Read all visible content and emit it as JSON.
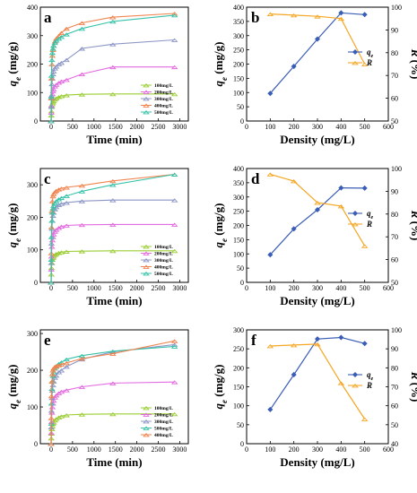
{
  "chart_data": [
    {
      "panel": "a",
      "type": "line",
      "xlabel": "Time (min)",
      "ylabel": "q_e (mg/g)",
      "xlim": [
        -250,
        3200
      ],
      "ylim": [
        0,
        400
      ],
      "xticks": [
        "0",
        "500",
        "1000",
        "1500",
        "2000",
        "2500",
        "3000"
      ],
      "yticks": [
        "0",
        "100",
        "200",
        "300",
        "400"
      ],
      "x": [
        0,
        5,
        10,
        20,
        30,
        45,
        60,
        90,
        120,
        180,
        240,
        360,
        720,
        1440,
        2880
      ],
      "series": [
        {
          "name": "100mg/L",
          "color": "#9ACD32",
          "values": [
            0,
            20,
            35,
            52,
            60,
            66,
            70,
            76,
            80,
            85,
            88,
            91,
            94,
            95,
            95
          ]
        },
        {
          "name": "200mg/L",
          "color": "#E36BE0",
          "values": [
            0,
            30,
            55,
            80,
            95,
            105,
            112,
            122,
            128,
            135,
            140,
            145,
            165,
            190,
            190
          ]
        },
        {
          "name": "300mg/L",
          "color": "#8C96C6",
          "values": [
            0,
            50,
            90,
            130,
            150,
            165,
            175,
            185,
            192,
            200,
            205,
            215,
            255,
            270,
            285
          ]
        },
        {
          "name": "400mg/L",
          "color": "#F0834E",
          "values": [
            0,
            80,
            150,
            200,
            230,
            250,
            265,
            280,
            290,
            300,
            310,
            325,
            345,
            365,
            378
          ]
        },
        {
          "name": "500mg/L",
          "color": "#36C2A8",
          "values": [
            0,
            85,
            160,
            215,
            240,
            255,
            265,
            275,
            283,
            290,
            296,
            305,
            325,
            350,
            372
          ]
        }
      ]
    },
    {
      "panel": "b",
      "type": "line",
      "dual_axis": true,
      "xlabel": "Density (mg/L)",
      "ylabel": "q_e (mg/g)",
      "ylabel_right": "R (%)",
      "xlim": [
        0,
        600
      ],
      "ylim": [
        0,
        400
      ],
      "ylim_right": [
        50,
        100
      ],
      "xticks": [
        "0",
        "100",
        "200",
        "300",
        "400",
        "500",
        "600"
      ],
      "yticks": [
        "0",
        "50",
        "100",
        "150",
        "200",
        "250",
        "300",
        "350",
        "400"
      ],
      "yticks_right": [
        "50",
        "60",
        "70",
        "80",
        "90",
        "100"
      ],
      "x": [
        100,
        200,
        300,
        400,
        500
      ],
      "series": [
        {
          "name": "q_e",
          "axis": "left",
          "color": "#3A5DB5",
          "values": [
            97,
            192,
            288,
            380,
            374
          ]
        },
        {
          "name": "R",
          "axis": "right",
          "color": "#F5A623",
          "values": [
            97,
            96.5,
            96,
            95,
            75
          ]
        }
      ]
    },
    {
      "panel": "c",
      "type": "line",
      "xlabel": "Time (min)",
      "ylabel": "q_e (mg/g)",
      "xlim": [
        -250,
        3200
      ],
      "ylim": [
        0,
        350
      ],
      "xticks": [
        "0",
        "500",
        "1000",
        "1500",
        "2000",
        "2500",
        "3000"
      ],
      "yticks": [
        "0",
        "100",
        "200",
        "300"
      ],
      "x": [
        0,
        5,
        10,
        20,
        30,
        45,
        60,
        90,
        120,
        180,
        240,
        360,
        720,
        1440,
        2880
      ],
      "series": [
        {
          "name": "100mg/L",
          "color": "#9ACD32",
          "values": [
            0,
            25,
            45,
            60,
            70,
            76,
            80,
            85,
            88,
            91,
            93,
            95,
            96,
            97,
            97
          ]
        },
        {
          "name": "200mg/L",
          "color": "#E36BE0",
          "values": [
            0,
            40,
            80,
            110,
            130,
            140,
            148,
            156,
            162,
            168,
            172,
            175,
            177,
            178,
            178
          ]
        },
        {
          "name": "300mg/L",
          "color": "#8C96C6",
          "values": [
            0,
            60,
            120,
            165,
            190,
            205,
            215,
            225,
            232,
            238,
            242,
            245,
            250,
            253,
            253
          ]
        },
        {
          "name": "400mg/L",
          "color": "#F0834E",
          "values": [
            0,
            90,
            170,
            220,
            250,
            265,
            272,
            278,
            282,
            286,
            289,
            292,
            298,
            312,
            332
          ]
        },
        {
          "name": "500mg/L",
          "color": "#36C2A8",
          "values": [
            0,
            70,
            140,
            190,
            215,
            228,
            236,
            244,
            250,
            256,
            260,
            266,
            280,
            300,
            332
          ]
        }
      ]
    },
    {
      "panel": "d",
      "type": "line",
      "dual_axis": true,
      "xlabel": "Density (mg/L)",
      "ylabel": "q_e (mg/g)",
      "ylabel_right": "R (%)",
      "xlim": [
        0,
        600
      ],
      "ylim": [
        0,
        400
      ],
      "ylim_right": [
        50,
        100
      ],
      "xticks": [
        "0",
        "100",
        "200",
        "300",
        "400",
        "500",
        "600"
      ],
      "yticks": [
        "0",
        "50",
        "100",
        "150",
        "200",
        "250",
        "300",
        "350",
        "400"
      ],
      "yticks_right": [
        "50",
        "60",
        "70",
        "80",
        "90",
        "100"
      ],
      "x": [
        100,
        200,
        300,
        400,
        500
      ],
      "series": [
        {
          "name": "q_e",
          "axis": "left",
          "color": "#3A5DB5",
          "values": [
            97,
            188,
            255,
            332,
            331
          ]
        },
        {
          "name": "R",
          "axis": "right",
          "color": "#F5A623",
          "values": [
            97.5,
            94.5,
            85,
            83.5,
            66
          ]
        }
      ]
    },
    {
      "panel": "e",
      "type": "line",
      "xlabel": "Time (min)",
      "ylabel": "q_e (mg/g)",
      "xlim": [
        -250,
        3200
      ],
      "ylim": [
        0,
        310
      ],
      "xticks": [
        "0",
        "500",
        "1000",
        "1500",
        "2000",
        "2500",
        "3000"
      ],
      "yticks": [
        "0",
        "100",
        "200",
        "300"
      ],
      "x": [
        0,
        5,
        10,
        20,
        30,
        45,
        60,
        90,
        120,
        180,
        240,
        360,
        720,
        1440,
        2880
      ],
      "series": [
        {
          "name": "100mg/L",
          "color": "#9ACD32",
          "values": [
            0,
            15,
            28,
            40,
            48,
            54,
            58,
            64,
            68,
            72,
            75,
            78,
            80,
            81,
            81
          ]
        },
        {
          "name": "200mg/L",
          "color": "#E36BE0",
          "values": [
            0,
            30,
            60,
            85,
            100,
            110,
            118,
            126,
            132,
            138,
            142,
            146,
            155,
            165,
            168
          ]
        },
        {
          "name": "300mg/L",
          "color": "#8C96C6",
          "values": [
            0,
            45,
            90,
            125,
            145,
            160,
            170,
            180,
            186,
            195,
            200,
            210,
            230,
            250,
            270
          ]
        },
        {
          "name": "500mg/L",
          "color": "#36C2A8",
          "values": [
            0,
            55,
            110,
            150,
            170,
            185,
            195,
            205,
            210,
            218,
            222,
            230,
            240,
            252,
            265
          ]
        },
        {
          "name": "400mg/L",
          "color": "#F0834E",
          "values": [
            0,
            70,
            130,
            170,
            190,
            200,
            205,
            210,
            212,
            214,
            216,
            220,
            232,
            245,
            280
          ]
        }
      ]
    },
    {
      "panel": "f",
      "type": "line",
      "dual_axis": true,
      "xlabel": "Density (mg/L)",
      "ylabel": "q_e (mg/g)",
      "ylabel_right": "R (%)",
      "xlim": [
        0,
        600
      ],
      "ylim": [
        0,
        300
      ],
      "ylim_right": [
        40,
        100
      ],
      "xticks": [
        "0",
        "100",
        "200",
        "300",
        "400",
        "500",
        "600"
      ],
      "yticks": [
        "0",
        "50",
        "100",
        "150",
        "200",
        "250",
        "300"
      ],
      "yticks_right": [
        "40",
        "50",
        "60",
        "70",
        "80",
        "90",
        "100"
      ],
      "x": [
        100,
        200,
        300,
        400,
        500
      ],
      "series": [
        {
          "name": "q_e",
          "axis": "left",
          "color": "#3A5DB5",
          "values": [
            90,
            182,
            276,
            280,
            264
          ]
        },
        {
          "name": "R",
          "axis": "right",
          "color": "#F5A623",
          "values": [
            91.5,
            92,
            92.5,
            72,
            53
          ]
        }
      ]
    }
  ]
}
